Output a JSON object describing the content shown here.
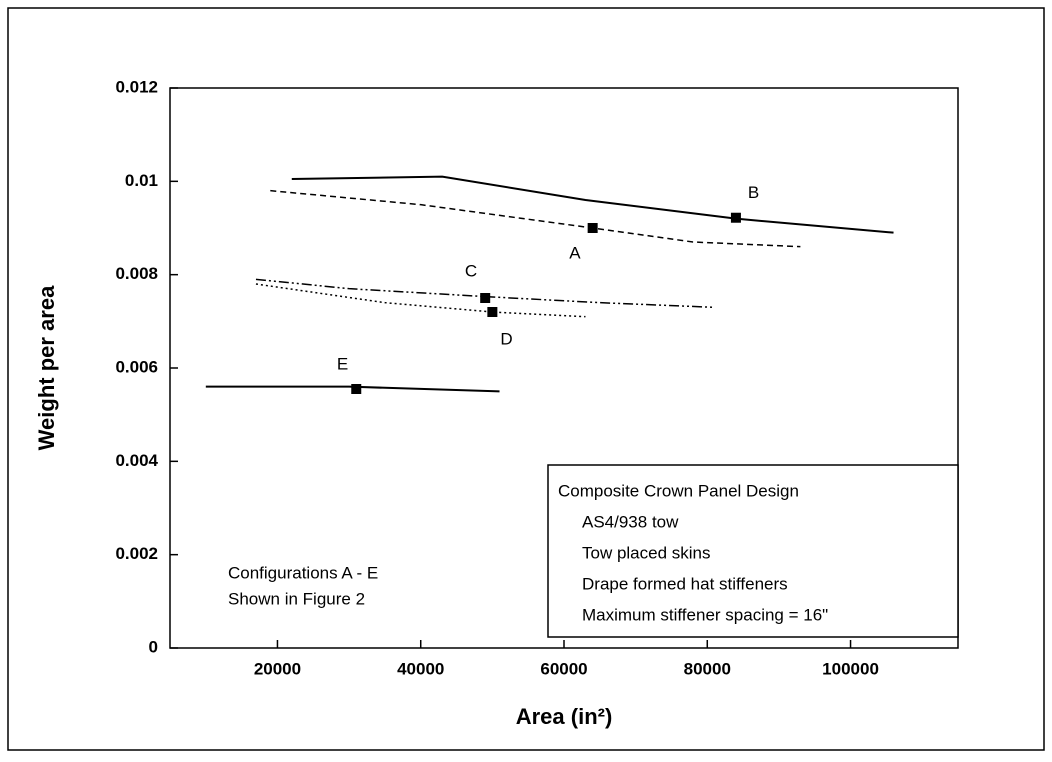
{
  "chart_data": {
    "type": "line",
    "xlabel": "Area (in²)",
    "ylabel": "Weight per area",
    "xlim": [
      5000,
      115000
    ],
    "xticks": [
      20000,
      40000,
      60000,
      80000,
      100000
    ],
    "ylim": [
      0,
      0.012
    ],
    "yticks": [
      0,
      0.002,
      0.004,
      0.006,
      0.008,
      0.01,
      0.012
    ],
    "series": [
      {
        "name": "B",
        "color": "#000000",
        "style": "solid",
        "x": [
          22000,
          43000,
          63000,
          84000,
          106000
        ],
        "values": [
          0.01005,
          0.0101,
          0.0096,
          0.0092,
          0.0089
        ],
        "marker_x": 84000,
        "marker_y": 0.00922
      },
      {
        "name": "A",
        "color": "#000000",
        "style": "dashed",
        "x": [
          19000,
          40000,
          64000,
          78000,
          93000
        ],
        "values": [
          0.0098,
          0.0095,
          0.009,
          0.0087,
          0.0086
        ],
        "marker_x": 64000,
        "marker_y": 0.009
      },
      {
        "name": "C",
        "color": "#000000",
        "style": "dashdot",
        "x": [
          17000,
          30000,
          49000,
          65000,
          81000
        ],
        "values": [
          0.0079,
          0.0077,
          0.00753,
          0.0074,
          0.0073
        ],
        "marker_x": 49000,
        "marker_y": 0.0075
      },
      {
        "name": "D",
        "color": "#000000",
        "style": "dotted",
        "x": [
          17000,
          35000,
          50000,
          63000
        ],
        "values": [
          0.0078,
          0.0074,
          0.0072,
          0.0071
        ],
        "marker_x": 50000,
        "marker_y": 0.0072
      },
      {
        "name": "E",
        "color": "#000000",
        "style": "solid",
        "x": [
          10000,
          30000,
          51000
        ],
        "values": [
          0.0056,
          0.0056,
          0.0055
        ],
        "marker_x": 31000,
        "marker_y": 0.00555
      }
    ],
    "annotations": [
      "Configurations A - E",
      "Shown in Figure 2"
    ],
    "textbox": [
      "Composite Crown Panel Design",
      "AS4/938 tow",
      "Tow placed skins",
      "Drape formed hat stiffeners",
      "Maximum stiffener spacing = 16\""
    ]
  }
}
